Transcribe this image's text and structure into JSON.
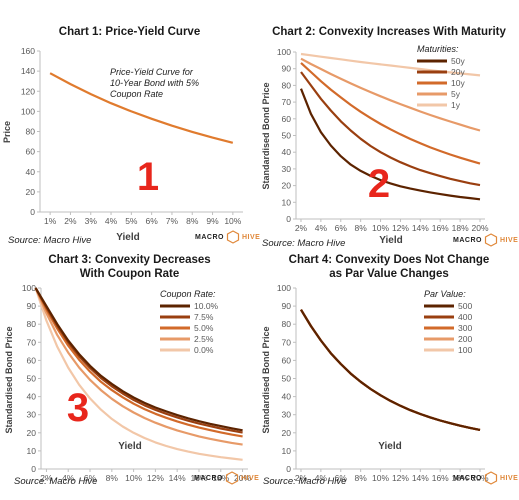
{
  "colors": {
    "axis": "#bfbfbf",
    "tick_text": "#595959",
    "big_number": "#e8261c",
    "logo_accent": "#e0883a",
    "series_dark_to_light": [
      "#5c2300",
      "#9a3f10",
      "#d26a2a",
      "#e79a68",
      "#f2c7a8"
    ]
  },
  "branding": {
    "logo_left": "MACRO",
    "logo_right": "HIVE"
  },
  "chart_data": [
    {
      "type": "line",
      "title": "Chart 1: Price-Yield Curve",
      "xlabel": "Yield",
      "ylabel": "Price",
      "xtick_labels": [
        "1%",
        "2%",
        "3%",
        "4%",
        "5%",
        "6%",
        "7%",
        "8%",
        "9%",
        "10%"
      ],
      "yticks": [
        0,
        20,
        40,
        60,
        80,
        100,
        120,
        140,
        160
      ],
      "xlim": [
        0.5,
        10.5
      ],
      "ylim": [
        0,
        160
      ],
      "annotation": "Price-Yield Curve for 10-Year Bond with 5% Coupon Rate",
      "big_number": "1",
      "source": "Source: Macro Hive",
      "series": [
        {
          "x": [
            1,
            2,
            3,
            4,
            5,
            6,
            7,
            8,
            9,
            10
          ],
          "y": [
            137.9,
            127.1,
            117.2,
            108.1,
            100.0,
            92.6,
            85.8,
            79.6,
            73.9,
            68.8
          ]
        }
      ]
    },
    {
      "type": "line",
      "title": "Chart 2: Convexity Increases With Maturity",
      "xlabel": "Yield",
      "ylabel": "Standardised Bond Price",
      "xtick_labels": [
        "2%",
        "4%",
        "6%",
        "8%",
        "10%",
        "12%",
        "14%",
        "16%",
        "18%",
        "20%"
      ],
      "yticks": [
        0,
        10,
        20,
        30,
        40,
        50,
        60,
        70,
        80,
        90,
        100
      ],
      "xlim": [
        1.5,
        20.5
      ],
      "ylim": [
        0,
        100
      ],
      "legend_title": "Maturities:",
      "legend_position": "top-right",
      "big_number": "2",
      "source": "Source: Macro Hive",
      "x": [
        2,
        3,
        4,
        5,
        6,
        7,
        8,
        9,
        10,
        11,
        12,
        13,
        14,
        15,
        16,
        17,
        18,
        19,
        20
      ],
      "series": [
        {
          "name": "50y",
          "values": [
            78.0,
            63.0,
            52.0,
            44.0,
            37.6,
            32.6,
            28.8,
            25.8,
            23.3,
            21.3,
            19.6,
            18.2,
            17.0,
            15.9,
            14.9,
            14.0,
            13.2,
            12.5,
            11.8
          ]
        },
        {
          "name": "20y",
          "values": [
            88.0,
            80.0,
            72.0,
            65.0,
            58.5,
            53.0,
            48.0,
            43.7,
            40.0,
            36.8,
            34.0,
            31.5,
            29.3,
            27.4,
            25.7,
            24.1,
            22.7,
            21.4,
            20.3
          ]
        },
        {
          "name": "10y",
          "values": [
            93.5,
            88.0,
            82.5,
            77.5,
            72.8,
            68.3,
            64.2,
            60.4,
            56.9,
            53.7,
            50.7,
            47.9,
            45.3,
            42.9,
            40.7,
            38.6,
            36.7,
            34.9,
            33.2
          ]
        },
        {
          "name": "5y",
          "values": [
            96.0,
            92.8,
            89.8,
            86.8,
            84.0,
            81.2,
            78.5,
            76.0,
            73.5,
            71.1,
            68.8,
            66.6,
            64.4,
            62.3,
            60.3,
            58.4,
            56.5,
            54.7,
            53.0
          ]
        },
        {
          "name": "1y",
          "values": [
            98.8,
            98.0,
            97.2,
            96.4,
            95.6,
            94.8,
            94.0,
            93.3,
            92.6,
            91.9,
            91.2,
            90.5,
            89.8,
            89.1,
            88.4,
            87.8,
            87.2,
            86.6,
            86.0
          ]
        }
      ]
    },
    {
      "type": "line",
      "title": "Chart 3: Convexity Decreases With Coupon Rate",
      "xlabel": "Yield",
      "ylabel": "Standardised Bond Price",
      "xtick_labels": [
        "2%",
        "4%",
        "6%",
        "8%",
        "10%",
        "12%",
        "14%",
        "16%",
        "18%",
        "20%"
      ],
      "yticks": [
        0,
        10,
        20,
        30,
        40,
        50,
        60,
        70,
        80,
        90,
        100
      ],
      "xlim": [
        1.5,
        20.5
      ],
      "ylim": [
        0,
        100
      ],
      "legend_title": "Coupon Rate:",
      "legend_position": "top-right",
      "big_number": "3",
      "source": "Source: Macro Hive",
      "x": [
        1,
        2,
        3,
        4,
        5,
        6,
        7,
        8,
        9,
        10,
        11,
        12,
        13,
        14,
        15,
        16,
        17,
        18,
        19,
        20
      ],
      "series": [
        {
          "name": "10.0%",
          "values": [
            100,
            90.0,
            80.0,
            71.0,
            63.5,
            57.0,
            51.5,
            47.0,
            43.0,
            39.5,
            36.5,
            34.0,
            31.8,
            29.8,
            28.0,
            26.4,
            25.0,
            23.7,
            22.5,
            21.4
          ]
        },
        {
          "name": "7.5%",
          "values": [
            100,
            89.3,
            79.0,
            70.0,
            62.3,
            55.8,
            50.3,
            45.7,
            41.7,
            38.2,
            35.2,
            32.7,
            30.5,
            28.5,
            26.7,
            25.1,
            23.7,
            22.4,
            21.2,
            20.1
          ]
        },
        {
          "name": "5.0%",
          "values": [
            100,
            88.2,
            77.5,
            68.2,
            60.4,
            53.8,
            48.2,
            43.6,
            39.6,
            36.1,
            33.1,
            30.5,
            28.3,
            26.3,
            24.5,
            22.9,
            21.5,
            20.2,
            19.0,
            18.0
          ]
        },
        {
          "name": "2.5%",
          "values": [
            100,
            86.0,
            74.0,
            64.3,
            56.1,
            49.3,
            43.6,
            38.8,
            34.7,
            31.2,
            28.2,
            25.6,
            23.3,
            21.3,
            19.6,
            18.0,
            16.7,
            15.5,
            14.4,
            13.5
          ]
        },
        {
          "name": "0.0%",
          "values": [
            100,
            82.0,
            67.5,
            56.0,
            46.6,
            39.0,
            32.8,
            27.7,
            23.5,
            20.0,
            17.1,
            14.7,
            12.7,
            11.0,
            9.6,
            8.4,
            7.4,
            6.5,
            5.8,
            5.1
          ]
        }
      ]
    },
    {
      "type": "line",
      "title": "Chart 4: Convexity Does Not Change as Par Value Changes",
      "xlabel": "Yield",
      "ylabel": "Standardised Bond Price",
      "xtick_labels": [
        "2%",
        "4%",
        "6%",
        "8%",
        "10%",
        "12%",
        "14%",
        "16%",
        "18%",
        "20%"
      ],
      "yticks": [
        0,
        10,
        20,
        30,
        40,
        50,
        60,
        70,
        80,
        90,
        100
      ],
      "xlim": [
        1.5,
        20.5
      ],
      "ylim": [
        0,
        100
      ],
      "legend_title": "Par Value:",
      "legend_position": "top-right",
      "source": "Source: Macro Hive",
      "x": [
        2,
        3,
        4,
        5,
        6,
        7,
        8,
        9,
        10,
        11,
        12,
        13,
        14,
        15,
        16,
        17,
        18,
        19,
        20
      ],
      "series": [
        {
          "name": "500",
          "values": [
            88.0,
            79.0,
            71.0,
            64.0,
            58.0,
            52.7,
            48.2,
            44.2,
            40.7,
            37.6,
            34.9,
            32.5,
            30.4,
            28.5,
            26.8,
            25.3,
            23.9,
            22.7,
            21.6
          ]
        },
        {
          "name": "400",
          "values": [
            88.0,
            79.0,
            71.0,
            64.0,
            58.0,
            52.7,
            48.2,
            44.2,
            40.7,
            37.6,
            34.9,
            32.5,
            30.4,
            28.5,
            26.8,
            25.3,
            23.9,
            22.7,
            21.6
          ]
        },
        {
          "name": "300",
          "values": [
            88.0,
            79.0,
            71.0,
            64.0,
            58.0,
            52.7,
            48.2,
            44.2,
            40.7,
            37.6,
            34.9,
            32.5,
            30.4,
            28.5,
            26.8,
            25.3,
            23.9,
            22.7,
            21.6
          ]
        },
        {
          "name": "200",
          "values": [
            88.0,
            79.0,
            71.0,
            64.0,
            58.0,
            52.7,
            48.2,
            44.2,
            40.7,
            37.6,
            34.9,
            32.5,
            30.4,
            28.5,
            26.8,
            25.3,
            23.9,
            22.7,
            21.6
          ]
        },
        {
          "name": "100",
          "values": [
            88.0,
            79.0,
            71.0,
            64.0,
            58.0,
            52.7,
            48.2,
            44.2,
            40.7,
            37.6,
            34.9,
            32.5,
            30.4,
            28.5,
            26.8,
            25.3,
            23.9,
            22.7,
            21.6
          ]
        }
      ]
    }
  ]
}
